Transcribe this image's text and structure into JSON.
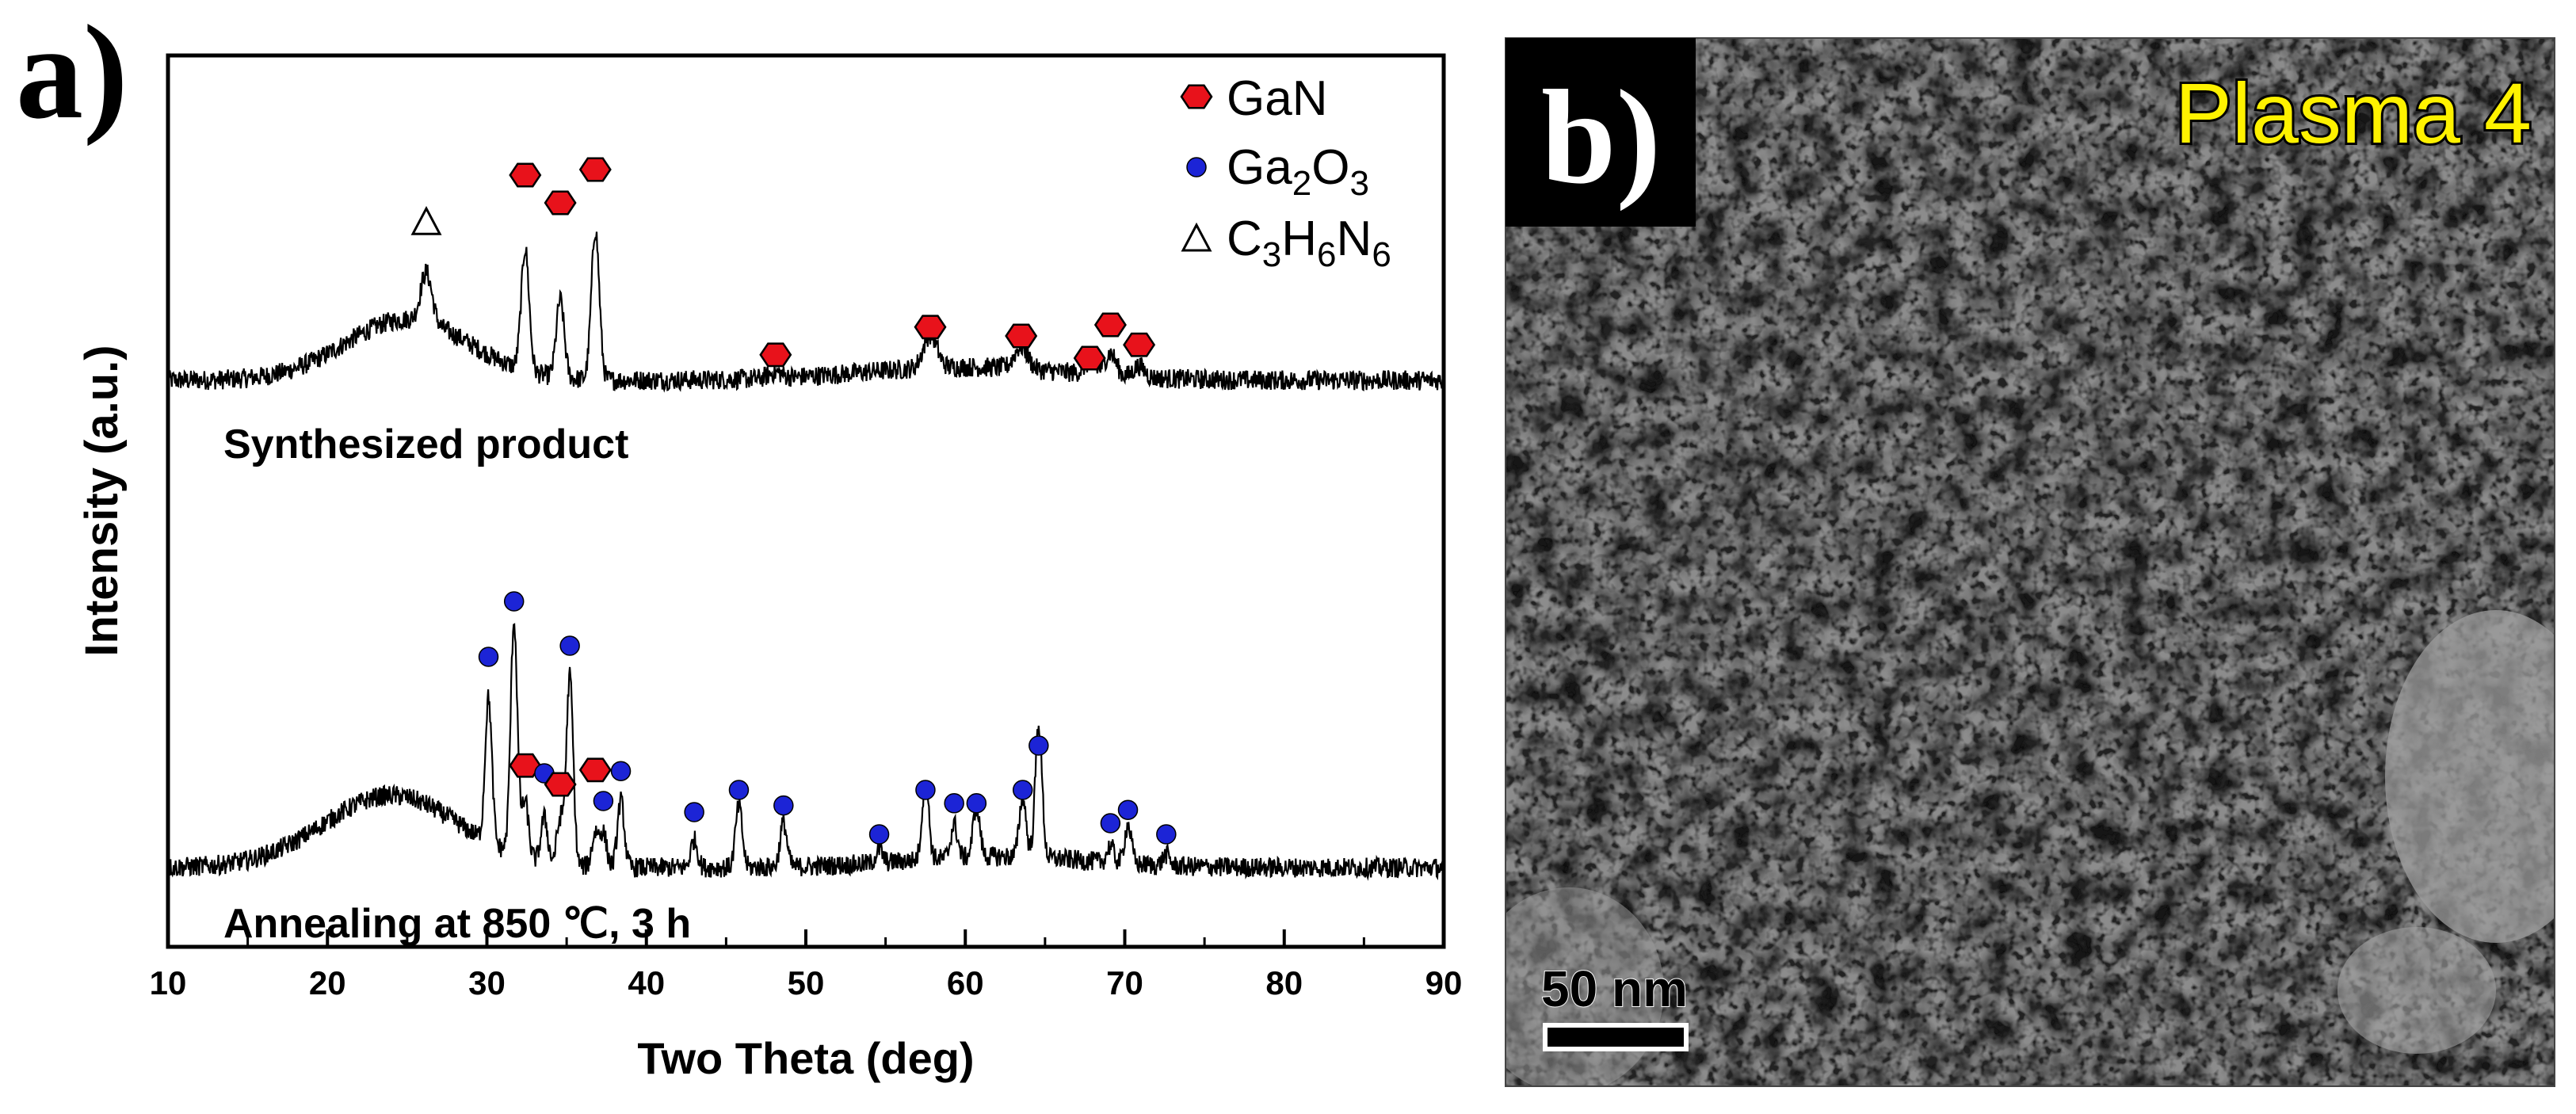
{
  "colors": {
    "gan": "#e8121b",
    "ga2o3": "#1c24d6",
    "c3h6n6": "#ffffff",
    "line": "#000000",
    "plasma_label": "#fff200"
  },
  "panel_a": {
    "label": "a)",
    "chart_data": {
      "type": "line",
      "xlabel": "Two Theta (deg)",
      "ylabel": "Intensity (a.u.)",
      "xlim": [
        10,
        90
      ],
      "xticks": [
        10,
        20,
        30,
        40,
        50,
        60,
        70,
        80,
        90
      ],
      "grid": false,
      "legend_position": "top-right",
      "legend": [
        {
          "key": "gan",
          "marker": "hexagon",
          "label": "GaN"
        },
        {
          "key": "ga2o3",
          "marker": "circle",
          "label": "Ga",
          "sub1": "2",
          "mid": "O",
          "sub2": "3"
        },
        {
          "key": "c3h6n6",
          "marker": "triangle",
          "label": "C",
          "sub1": "3",
          "mid": "H",
          "sub2": "6",
          "tail": "N",
          "sub3": "6"
        }
      ],
      "series": [
        {
          "name": "Synthesized product",
          "baseline": 0.0,
          "hump": {
            "center": 25,
            "width": 5.5,
            "height": 0.55
          },
          "tail": {
            "center": 60,
            "width": 9,
            "height": 0.12
          },
          "peaks": [
            {
              "two_theta": 26.2,
              "height": 0.45,
              "width": 0.5,
              "phase": "c3h6n6",
              "marker_height": 1.42
            },
            {
              "two_theta": 32.4,
              "height": 1.1,
              "width": 0.35,
              "phase": "gan",
              "marker_height": 1.85
            },
            {
              "two_theta": 34.6,
              "height": 0.7,
              "width": 0.35,
              "phase": "gan",
              "marker_height": 1.6
            },
            {
              "two_theta": 36.8,
              "height": 1.35,
              "width": 0.35,
              "phase": "gan",
              "marker_height": 1.9
            },
            {
              "two_theta": 48.1,
              "height": 0.05,
              "width": 0.6,
              "phase": "gan",
              "marker_height": 0.23
            },
            {
              "two_theta": 57.8,
              "height": 0.3,
              "width": 0.6,
              "phase": "gan",
              "marker_height": 0.48
            },
            {
              "two_theta": 63.5,
              "height": 0.2,
              "width": 0.6,
              "phase": "gan",
              "marker_height": 0.4
            },
            {
              "two_theta": 67.8,
              "height": 0.1,
              "width": 0.5,
              "phase": "gan",
              "marker_height": 0.2
            },
            {
              "two_theta": 69.1,
              "height": 0.2,
              "width": 0.5,
              "phase": "gan",
              "marker_height": 0.5
            },
            {
              "two_theta": 70.9,
              "height": 0.1,
              "width": 0.5,
              "phase": "gan",
              "marker_height": 0.32
            }
          ]
        },
        {
          "name": "Annealing at 850 ℃, 3 h",
          "baseline": 0.0,
          "hump": {
            "center": 24,
            "width": 6,
            "height": 0.65
          },
          "tail": {
            "center": 62,
            "width": 8,
            "height": 0.1
          },
          "peaks": [
            {
              "two_theta": 30.1,
              "height": 1.3,
              "width": 0.3,
              "phase": "ga2o3",
              "marker_height": 1.9
            },
            {
              "two_theta": 31.7,
              "height": 2.1,
              "width": 0.3,
              "phase": "ga2o3",
              "marker_height": 2.4
            },
            {
              "two_theta": 32.4,
              "height": 0.5,
              "width": 0.3,
              "phase": "gan",
              "marker_height": 0.92
            },
            {
              "two_theta": 33.6,
              "height": 0.4,
              "width": 0.3,
              "phase": "ga2o3",
              "marker_height": 0.85
            },
            {
              "two_theta": 34.6,
              "height": 0.4,
              "width": 0.3,
              "phase": "gan",
              "marker_height": 0.75
            },
            {
              "two_theta": 35.2,
              "height": 1.7,
              "width": 0.3,
              "phase": "ga2o3",
              "marker_height": 2.0
            },
            {
              "two_theta": 36.8,
              "height": 0.3,
              "width": 0.3,
              "phase": "gan",
              "marker_height": 0.88
            },
            {
              "two_theta": 37.3,
              "height": 0.3,
              "width": 0.3,
              "phase": "ga2o3",
              "marker_height": 0.6
            },
            {
              "two_theta": 38.4,
              "height": 0.6,
              "width": 0.3,
              "phase": "ga2o3",
              "marker_height": 0.87
            },
            {
              "two_theta": 43.0,
              "height": 0.25,
              "width": 0.3,
              "phase": "ga2o3",
              "marker_height": 0.5
            },
            {
              "two_theta": 45.8,
              "height": 0.55,
              "width": 0.3,
              "phase": "ga2o3",
              "marker_height": 0.7
            },
            {
              "two_theta": 48.6,
              "height": 0.4,
              "width": 0.3,
              "phase": "ga2o3",
              "marker_height": 0.56
            },
            {
              "two_theta": 54.6,
              "height": 0.12,
              "width": 0.3,
              "phase": "ga2o3",
              "marker_height": 0.3
            },
            {
              "two_theta": 57.5,
              "height": 0.7,
              "width": 0.3,
              "phase": "ga2o3",
              "marker_height": 0.7
            },
            {
              "two_theta": 59.3,
              "height": 0.3,
              "width": 0.3,
              "phase": "ga2o3",
              "marker_height": 0.58
            },
            {
              "two_theta": 60.7,
              "height": 0.45,
              "width": 0.3,
              "phase": "ga2o3",
              "marker_height": 0.58
            },
            {
              "two_theta": 63.6,
              "height": 0.55,
              "width": 0.3,
              "phase": "ga2o3",
              "marker_height": 0.7
            },
            {
              "two_theta": 64.6,
              "height": 1.2,
              "width": 0.3,
              "phase": "ga2o3",
              "marker_height": 1.1
            },
            {
              "two_theta": 69.1,
              "height": 0.15,
              "width": 0.3,
              "phase": "ga2o3",
              "marker_height": 0.4
            },
            {
              "two_theta": 70.2,
              "height": 0.35,
              "width": 0.3,
              "phase": "ga2o3",
              "marker_height": 0.52
            },
            {
              "two_theta": 72.6,
              "height": 0.1,
              "width": 0.3,
              "phase": "ga2o3",
              "marker_height": 0.3
            }
          ]
        }
      ]
    }
  },
  "panel_b": {
    "label": "b)",
    "title": "Plasma 4",
    "scale_bar_text": "50 nm"
  }
}
